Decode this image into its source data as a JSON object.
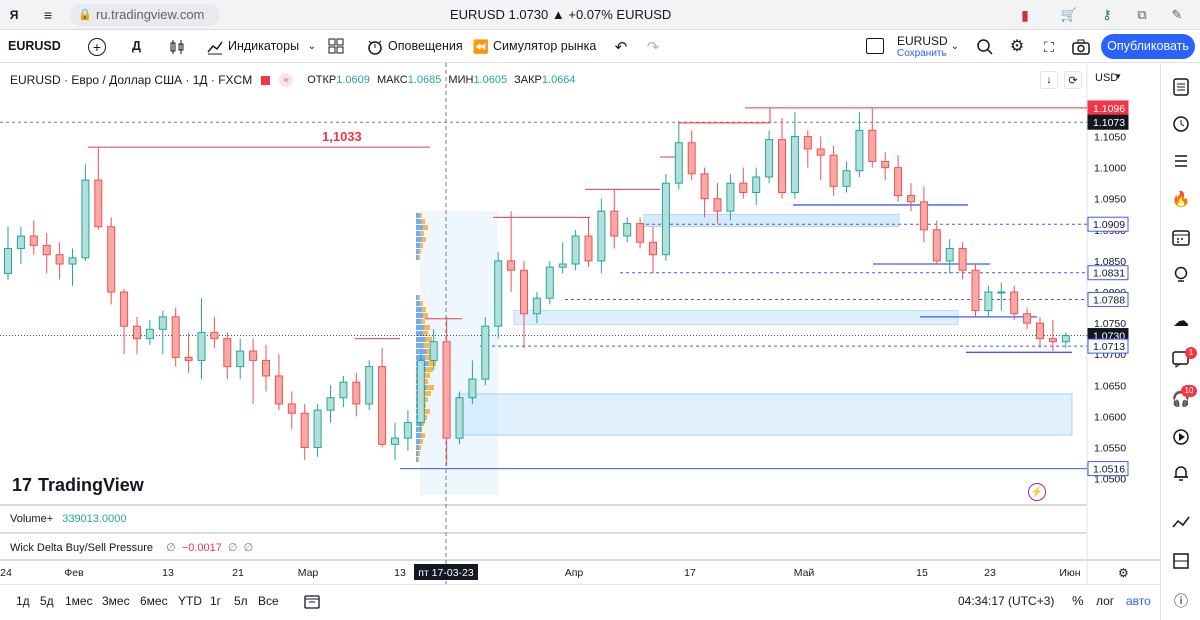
{
  "browser": {
    "url": "ru.tradingview.com",
    "tab_title": "EURUSD 1.0730 ▲ +0.07% EURUSD"
  },
  "toolbar": {
    "symbol": "EURUSD",
    "interval": "Д",
    "indicators_label": "Индикаторы",
    "alerts_label": "Оповещения",
    "replay_label": "Симулятор рынка",
    "layout_name": "EURUSD",
    "layout_status": "Сохранить",
    "publish_label": "Опубликовать"
  },
  "legend": {
    "title": "EURUSD · Евро / Доллар США · 1Д · FXCM",
    "open_label": "ОТКР",
    "open_value": "1.0609",
    "high_label": "МАКС",
    "high_value": "1.0685",
    "low_label": "МИН",
    "low_value": "1.0605",
    "close_label": "ЗАКР",
    "close_value": "1.0664",
    "currency": "USD"
  },
  "annotation_level": "1,1033",
  "watermark": "TradingView",
  "volume": {
    "label": "Volume",
    "value": "339013.0000"
  },
  "wick_delta": {
    "label": "Wick Delta Buy/Sell Pressure",
    "values": [
      "∅",
      "−0.0017",
      "∅",
      "∅"
    ]
  },
  "colors": {
    "up": "#26a69a",
    "up_fill": "#b2dfdb",
    "down": "#ef5350",
    "down_fill": "#f7a9a7",
    "accent": "#2962ff",
    "red_line": "#f23645",
    "blue_line": "#3d5afe"
  },
  "chart_data": {
    "type": "candlestick",
    "ylim": [
      1.048,
      1.112
    ],
    "y_ticks": [
      "1.1050",
      "1.1000",
      "1.0950",
      "1.0900",
      "1.0850",
      "1.0800",
      "1.0750",
      "1.0700",
      "1.0650",
      "1.0600",
      "1.0550",
      "1.0500"
    ],
    "price_labels": [
      {
        "value": "1.1096",
        "kind": "red"
      },
      {
        "value": "1.1073",
        "kind": "dark"
      },
      {
        "value": "1.0909",
        "kind": "blue"
      },
      {
        "value": "1.0831",
        "kind": "blue"
      },
      {
        "value": "1.0788",
        "kind": "blue"
      },
      {
        "value": "1.0730",
        "kind": "dark"
      },
      {
        "value": "1.0713",
        "kind": "blue"
      },
      {
        "value": "1.0516",
        "kind": "blue"
      }
    ],
    "x_labels": [
      "24",
      "Фев",
      "13",
      "21",
      "Мар",
      "13",
      "Апр",
      "17",
      "Май",
      "15",
      "23",
      "Июн"
    ],
    "crosshair_label": "пт 17-03-23",
    "candles": [
      [
        1.083,
        1.0905,
        1.082,
        1.087
      ],
      [
        1.087,
        1.0905,
        1.0845,
        1.089
      ],
      [
        1.089,
        1.0915,
        1.086,
        1.0875
      ],
      [
        1.0875,
        1.0895,
        1.083,
        1.086
      ],
      [
        1.086,
        1.088,
        1.082,
        1.0845
      ],
      [
        1.0845,
        1.087,
        1.081,
        1.0855
      ],
      [
        1.0855,
        1.1005,
        1.085,
        1.098
      ],
      [
        1.098,
        1.1033,
        1.09,
        1.0905
      ],
      [
        1.0905,
        1.092,
        1.078,
        1.08
      ],
      [
        1.08,
        1.0805,
        1.07,
        1.0745
      ],
      [
        1.0745,
        1.076,
        1.07,
        1.0725
      ],
      [
        1.0725,
        1.0755,
        1.0715,
        1.074
      ],
      [
        1.074,
        1.077,
        1.07,
        1.076
      ],
      [
        1.076,
        1.0775,
        1.068,
        1.0695
      ],
      [
        1.0695,
        1.0735,
        1.067,
        1.069
      ],
      [
        1.069,
        1.079,
        1.066,
        1.0735
      ],
      [
        1.0735,
        1.076,
        1.071,
        1.0725
      ],
      [
        1.0725,
        1.0735,
        1.066,
        1.068
      ],
      [
        1.068,
        1.0725,
        1.066,
        1.0705
      ],
      [
        1.0705,
        1.0725,
        1.062,
        1.069
      ],
      [
        1.069,
        1.0715,
        1.064,
        1.0665
      ],
      [
        1.0665,
        1.07,
        1.061,
        1.062
      ],
      [
        1.062,
        1.064,
        1.058,
        1.0605
      ],
      [
        1.0605,
        1.062,
        1.053,
        1.055
      ],
      [
        1.055,
        1.062,
        1.0535,
        1.061
      ],
      [
        1.061,
        1.065,
        1.059,
        1.063
      ],
      [
        1.063,
        1.0665,
        1.0615,
        1.0655
      ],
      [
        1.0655,
        1.067,
        1.06,
        1.062
      ],
      [
        1.062,
        1.069,
        1.061,
        1.068
      ],
      [
        1.068,
        1.071,
        1.055,
        1.0555
      ],
      [
        1.0555,
        1.059,
        1.053,
        1.0565
      ],
      [
        1.0565,
        1.061,
        1.0545,
        1.059
      ],
      [
        1.059,
        1.07,
        1.0575,
        1.069
      ],
      [
        1.069,
        1.074,
        1.0675,
        1.072
      ],
      [
        1.072,
        1.076,
        1.052,
        1.0565
      ],
      [
        1.0565,
        1.064,
        1.0555,
        1.063
      ],
      [
        1.063,
        1.069,
        1.062,
        1.066
      ],
      [
        1.066,
        1.076,
        1.065,
        1.0745
      ],
      [
        1.0745,
        1.0865,
        1.0725,
        1.085
      ],
      [
        1.085,
        1.093,
        1.08,
        1.0835
      ],
      [
        1.0835,
        1.085,
        1.071,
        1.0765
      ],
      [
        1.0765,
        1.08,
        1.075,
        1.079
      ],
      [
        1.079,
        1.085,
        1.078,
        1.084
      ],
      [
        1.084,
        1.088,
        1.083,
        1.0845
      ],
      [
        1.0845,
        1.09,
        1.0835,
        1.089
      ],
      [
        1.089,
        1.092,
        1.084,
        1.085
      ],
      [
        1.085,
        1.095,
        1.083,
        1.093
      ],
      [
        1.093,
        1.0965,
        1.087,
        1.089
      ],
      [
        1.089,
        1.092,
        1.088,
        1.091
      ],
      [
        1.091,
        1.092,
        1.087,
        1.088
      ],
      [
        1.088,
        1.0905,
        1.083,
        1.086
      ],
      [
        1.086,
        1.099,
        1.085,
        1.0975
      ],
      [
        1.0975,
        1.1075,
        1.0965,
        1.104
      ],
      [
        1.104,
        1.106,
        1.098,
        1.099
      ],
      [
        1.099,
        1.1,
        1.092,
        1.095
      ],
      [
        1.095,
        1.0975,
        1.091,
        1.093
      ],
      [
        1.093,
        1.099,
        1.0915,
        1.0975
      ],
      [
        1.0975,
        1.1,
        1.095,
        1.096
      ],
      [
        1.096,
        1.1,
        1.094,
        1.0985
      ],
      [
        1.0985,
        1.106,
        1.0975,
        1.1045
      ],
      [
        1.1045,
        1.108,
        1.095,
        1.096
      ],
      [
        1.096,
        1.109,
        1.095,
        1.105
      ],
      [
        1.105,
        1.106,
        1.1,
        1.103
      ],
      [
        1.103,
        1.105,
        1.098,
        1.102
      ],
      [
        1.102,
        1.1035,
        1.0955,
        1.097
      ],
      [
        1.097,
        1.101,
        1.096,
        1.0995
      ],
      [
        1.0995,
        1.109,
        1.0985,
        1.106
      ],
      [
        1.106,
        1.1095,
        1.1,
        1.101
      ],
      [
        1.101,
        1.1025,
        1.098,
        1.1
      ],
      [
        1.1,
        1.102,
        1.0945,
        1.0955
      ],
      [
        1.0955,
        1.0975,
        1.093,
        1.0945
      ],
      [
        1.0945,
        1.097,
        1.088,
        1.09
      ],
      [
        1.09,
        1.0915,
        1.0845,
        1.085
      ],
      [
        1.085,
        1.0885,
        1.083,
        1.087
      ],
      [
        1.087,
        1.088,
        1.082,
        1.0835
      ],
      [
        1.0835,
        1.0845,
        1.076,
        1.077
      ],
      [
        1.077,
        1.081,
        1.076,
        1.08
      ],
      [
        1.08,
        1.0815,
        1.077,
        1.08
      ],
      [
        1.08,
        1.081,
        1.0755,
        1.0765
      ],
      [
        1.0765,
        1.0775,
        1.074,
        1.075
      ],
      [
        1.075,
        1.076,
        1.071,
        1.0725
      ],
      [
        1.0725,
        1.0755,
        1.0705,
        1.072
      ],
      [
        1.072,
        1.0735,
        1.071,
        1.073
      ]
    ]
  },
  "time": {
    "clock": "04:34:17 (UTC+3)",
    "percent": "%",
    "log": "лог",
    "auto": "авто"
  },
  "ranges": [
    "1д",
    "5д",
    "1мес",
    "3мес",
    "6мес",
    "YTD",
    "1г",
    "5л",
    "Все"
  ]
}
